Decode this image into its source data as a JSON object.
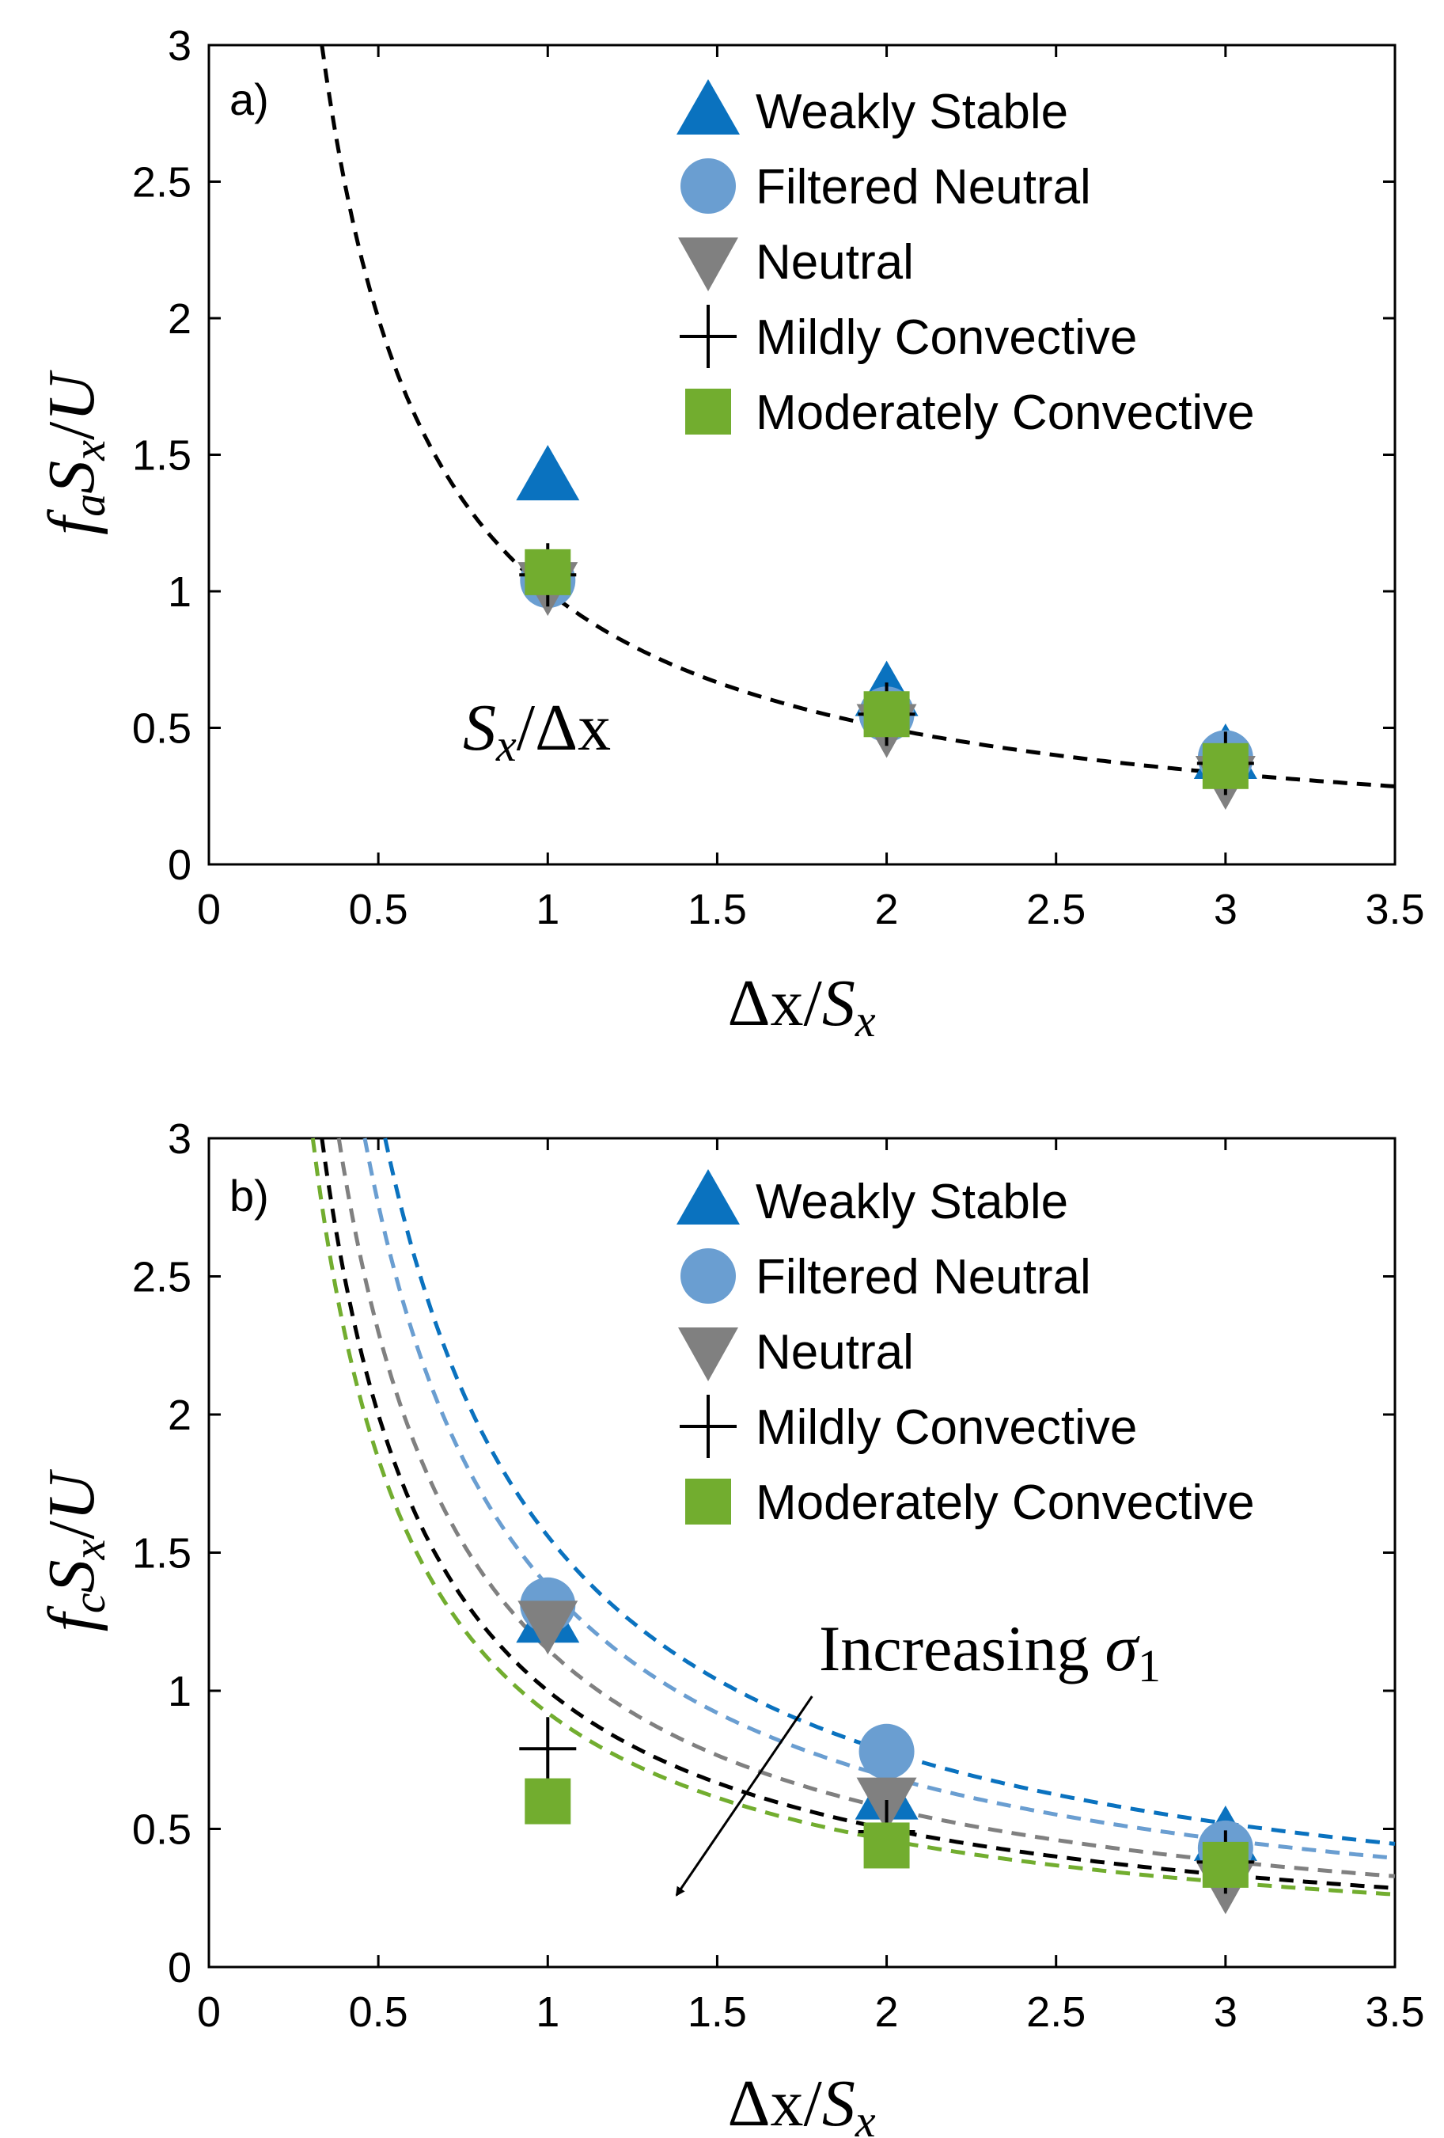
{
  "legend_entries": [
    {
      "key": "weakly_stable",
      "label": "Weakly Stable",
      "color": "#0a72bf",
      "marker": "triangle-up-icon"
    },
    {
      "key": "filtered_neutral",
      "label": "Filtered Neutral",
      "color": "#6a9ed1",
      "marker": "circle-icon"
    },
    {
      "key": "neutral",
      "label": "Neutral",
      "color": "#808080",
      "marker": "triangle-down-icon"
    },
    {
      "key": "mildly_convective",
      "label": "Mildly Convective",
      "color": "#000000",
      "marker": "plus-icon"
    },
    {
      "key": "moderately_convective",
      "label": "Moderately Convective",
      "color": "#72ad2f",
      "marker": "square-icon"
    }
  ],
  "chart_data": [
    {
      "type": "scatter",
      "panel_label": "a)",
      "xlabel": {
        "main": "Δx",
        "sep": "/",
        "var": "S",
        "sub": "x"
      },
      "ylabel": {
        "a": "f",
        "a_sub": "a",
        "b": "S",
        "b_sub": "x",
        "sep": "/",
        "c": "U"
      },
      "xlim": [
        0,
        3.5
      ],
      "ylim": [
        0,
        3
      ],
      "xticks": [
        "0",
        "0.5",
        "1",
        "1.5",
        "2",
        "2.5",
        "3",
        "3.5"
      ],
      "yticks": [
        "0",
        "0.5",
        "1",
        "1.5",
        "2",
        "2.5",
        "3"
      ],
      "legend_position": "top-right",
      "annotation": {
        "text": {
          "a": "S",
          "a_sub": "x",
          "sep": "/",
          "b": "Δx"
        },
        "at": [
          1.0,
          0.5
        ]
      },
      "curves": [
        {
          "name": "S_x/Δx",
          "color": "#000000",
          "k": 1.0,
          "dashed": true
        }
      ],
      "series": [
        {
          "name": "Weakly Stable",
          "x": [
            1,
            2,
            3
          ],
          "y": [
            1.42,
            0.63,
            0.4
          ]
        },
        {
          "name": "Filtered Neutral",
          "x": [
            1,
            2,
            3
          ],
          "y": [
            1.04,
            0.55,
            0.39
          ]
        },
        {
          "name": "Neutral",
          "x": [
            1,
            2,
            3
          ],
          "y": [
            1.02,
            0.5,
            0.31
          ]
        },
        {
          "name": "Mildly Convective",
          "x": [
            1,
            2,
            3
          ],
          "y": [
            1.06,
            0.55,
            0.37
          ]
        },
        {
          "name": "Moderately Convective",
          "x": [
            1,
            2,
            3
          ],
          "y": [
            1.07,
            0.55,
            0.36
          ]
        }
      ]
    },
    {
      "type": "scatter",
      "panel_label": "b)",
      "xlabel": {
        "main": "Δx",
        "sep": "/",
        "var": "S",
        "sub": "x"
      },
      "ylabel": {
        "a": "f",
        "a_sub": "c",
        "b": "S",
        "b_sub": "x",
        "sep": "/",
        "c": "U"
      },
      "xlim": [
        0,
        3.5
      ],
      "ylim": [
        0,
        3
      ],
      "xticks": [
        "0",
        "0.5",
        "1",
        "1.5",
        "2",
        "2.5",
        "3",
        "3.5"
      ],
      "yticks": [
        "0",
        "0.5",
        "1",
        "1.5",
        "2",
        "2.5",
        "3"
      ],
      "legend_position": "top-right",
      "annotation": {
        "text": {
          "a": "Increasing",
          "b": "σ",
          "b_sub": "1"
        },
        "arrow_from": [
          1.78,
          0.98
        ],
        "arrow_to": [
          1.38,
          0.26
        ]
      },
      "curves": [
        {
          "name": "Weakly Stable fit",
          "color": "#0a72bf",
          "k": 1.56,
          "dashed": true
        },
        {
          "name": "Filtered Neutral fit",
          "color": "#6a9ed1",
          "k": 1.38,
          "dashed": true
        },
        {
          "name": "Neutral fit",
          "color": "#808080",
          "k": 1.15,
          "dashed": true
        },
        {
          "name": "Mildly Convective fit",
          "color": "#000000",
          "k": 1.0,
          "dashed": true
        },
        {
          "name": "Moderately Convective fit",
          "color": "#72ad2f",
          "k": 0.92,
          "dashed": true
        }
      ],
      "series": [
        {
          "name": "Weakly Stable",
          "x": [
            1,
            2,
            3
          ],
          "y": [
            1.26,
            0.62,
            0.47
          ]
        },
        {
          "name": "Filtered Neutral",
          "x": [
            1,
            2,
            3
          ],
          "y": [
            1.31,
            0.78,
            0.43
          ]
        },
        {
          "name": "Neutral",
          "x": [
            1,
            2,
            3
          ],
          "y": [
            1.24,
            0.6,
            0.3
          ]
        },
        {
          "name": "Mildly Convective",
          "x": [
            1,
            2,
            3
          ],
          "y": [
            0.79,
            0.49,
            0.38
          ]
        },
        {
          "name": "Moderately Convective",
          "x": [
            1,
            2,
            3
          ],
          "y": [
            0.6,
            0.44,
            0.37
          ]
        }
      ]
    }
  ]
}
